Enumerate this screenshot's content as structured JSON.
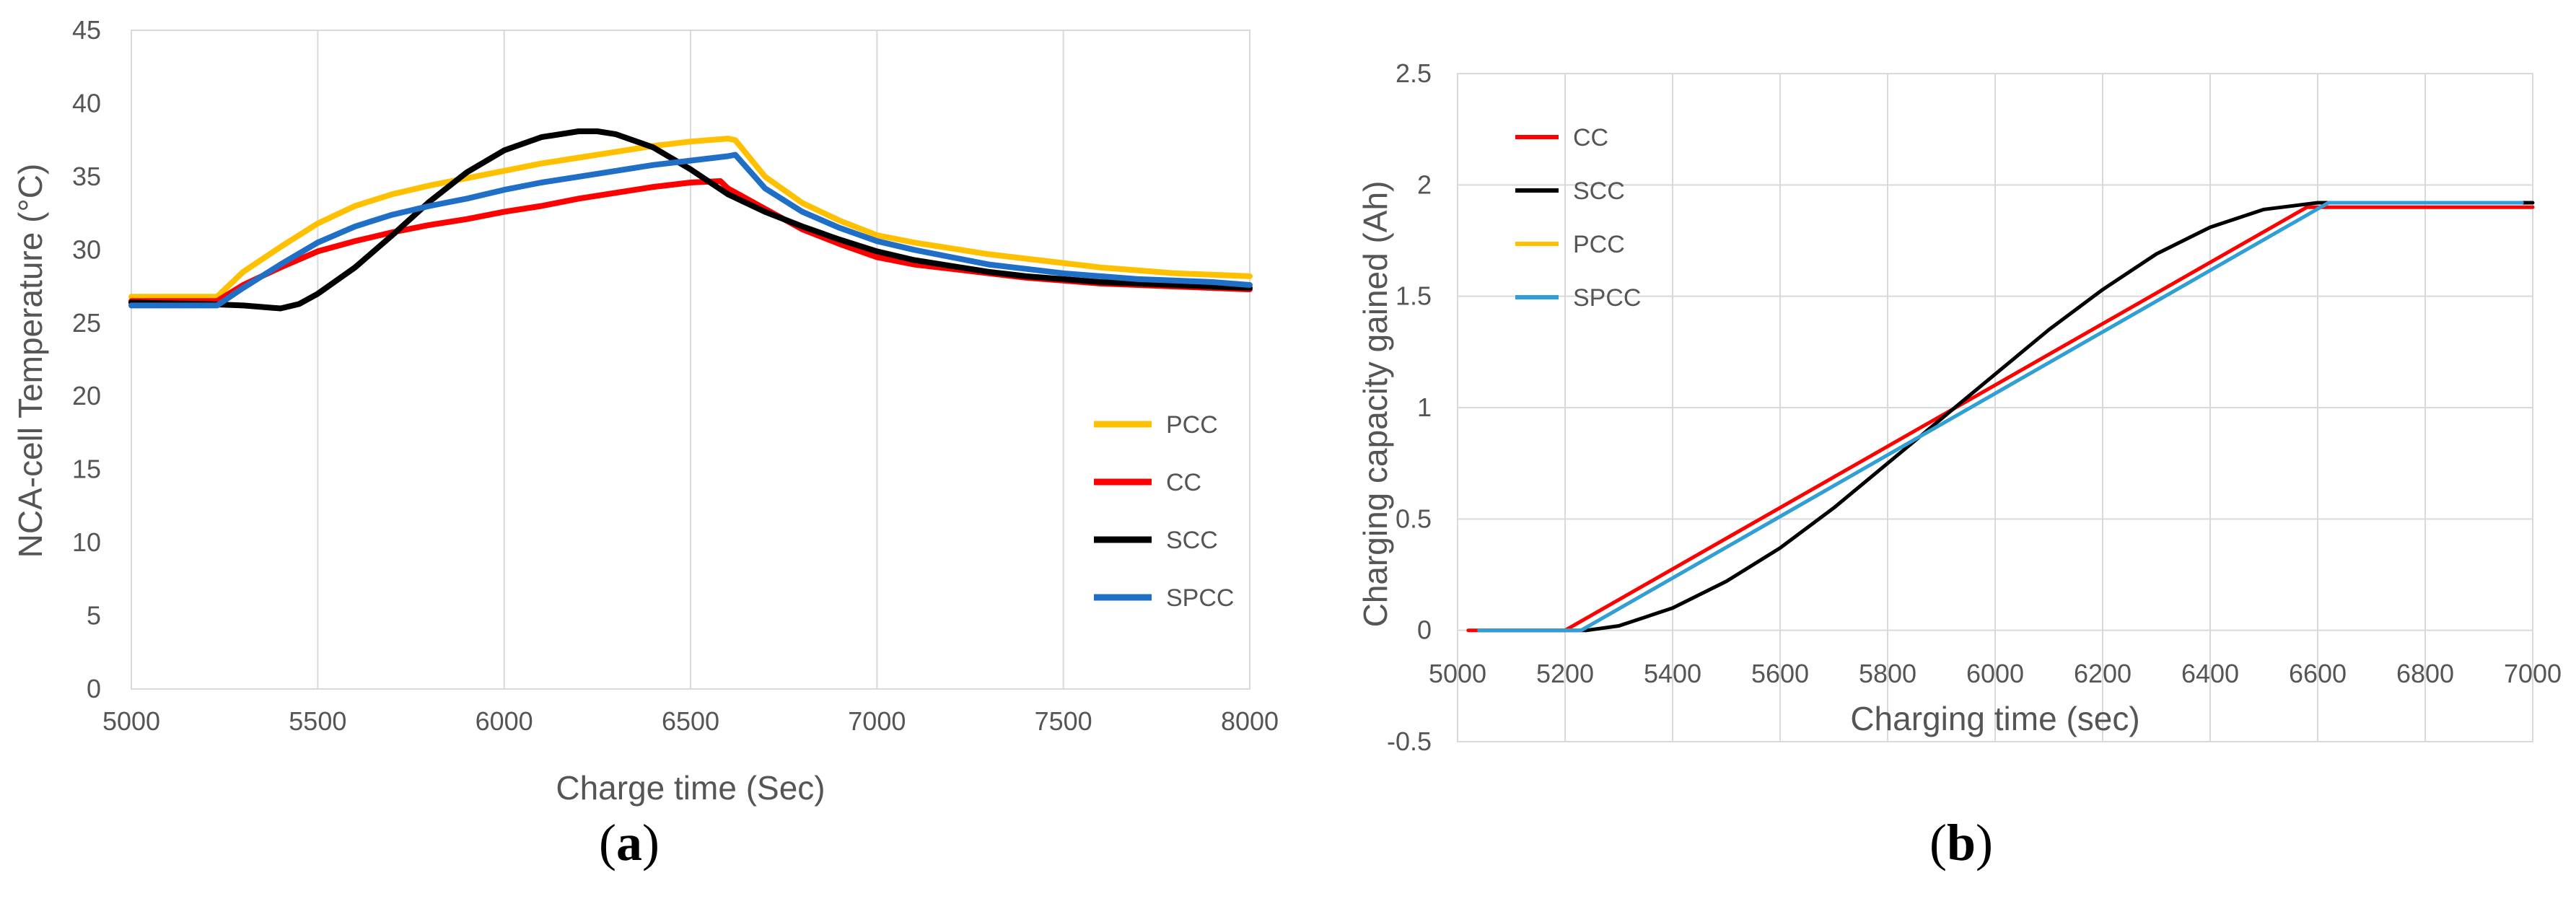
{
  "chart_data": [
    {
      "type": "line",
      "panel_label": "a",
      "xlabel": "Charge time (Sec)",
      "ylabel": "NCA-cell Temperature (°C)",
      "xlim": [
        5000,
        8000
      ],
      "ylim": [
        0,
        45
      ],
      "xticks": [
        5000,
        5500,
        6000,
        6500,
        7000,
        7500,
        8000
      ],
      "yticks": [
        0,
        5,
        10,
        15,
        20,
        25,
        30,
        35,
        40,
        45
      ],
      "grid": "vertical",
      "legend_position": "bottom-right",
      "series": [
        {
          "name": "PCC",
          "color": "#FFC000",
          "x": [
            5000,
            5230,
            5300,
            5400,
            5500,
            5600,
            5700,
            5800,
            5900,
            6000,
            6100,
            6200,
            6300,
            6400,
            6500,
            6600,
            6620,
            6700,
            6800,
            6900,
            7000,
            7100,
            7200,
            7300,
            7400,
            7500,
            7600,
            7700,
            7800,
            7900,
            8000
          ],
          "y": [
            26.8,
            26.8,
            28.5,
            30.2,
            31.8,
            33.0,
            33.8,
            34.4,
            34.9,
            35.4,
            35.9,
            36.3,
            36.7,
            37.1,
            37.4,
            37.6,
            37.5,
            35.0,
            33.2,
            32.0,
            31.0,
            30.5,
            30.1,
            29.7,
            29.4,
            29.1,
            28.8,
            28.6,
            28.4,
            28.3,
            28.2
          ]
        },
        {
          "name": "CC",
          "color": "#FF0000",
          "x": [
            5000,
            5230,
            5300,
            5400,
            5500,
            5600,
            5700,
            5800,
            5900,
            6000,
            6100,
            6200,
            6300,
            6400,
            6500,
            6580,
            6600,
            6700,
            6800,
            6900,
            7000,
            7100,
            7200,
            7300,
            7400,
            7500,
            7600,
            7700,
            7800,
            7900,
            8000
          ],
          "y": [
            26.5,
            26.5,
            27.6,
            28.8,
            29.9,
            30.6,
            31.2,
            31.7,
            32.1,
            32.6,
            33.0,
            33.5,
            33.9,
            34.3,
            34.6,
            34.7,
            34.2,
            32.8,
            31.4,
            30.4,
            29.5,
            29.0,
            28.7,
            28.4,
            28.1,
            27.9,
            27.7,
            27.6,
            27.5,
            27.4,
            27.3
          ]
        },
        {
          "name": "SCC",
          "color": "#000000",
          "x": [
            5000,
            5200,
            5300,
            5400,
            5450,
            5500,
            5600,
            5700,
            5800,
            5900,
            6000,
            6100,
            6200,
            6250,
            6300,
            6400,
            6500,
            6600,
            6700,
            6800,
            6900,
            7000,
            7100,
            7200,
            7300,
            7400,
            7500,
            7600,
            7700,
            7800,
            7900,
            8000
          ],
          "y": [
            26.4,
            26.3,
            26.2,
            26.0,
            26.3,
            27.0,
            28.8,
            31.0,
            33.3,
            35.3,
            36.8,
            37.7,
            38.1,
            38.1,
            37.9,
            37.0,
            35.5,
            33.8,
            32.6,
            31.6,
            30.7,
            29.9,
            29.3,
            28.9,
            28.5,
            28.2,
            28.0,
            27.8,
            27.7,
            27.6,
            27.5,
            27.4
          ]
        },
        {
          "name": "SPCC",
          "color": "#1F6FC6",
          "x": [
            5000,
            5230,
            5300,
            5400,
            5500,
            5600,
            5700,
            5800,
            5900,
            6000,
            6100,
            6200,
            6300,
            6400,
            6500,
            6600,
            6620,
            6700,
            6800,
            6900,
            7000,
            7100,
            7200,
            7300,
            7400,
            7500,
            7600,
            7700,
            7800,
            7900,
            8000
          ],
          "y": [
            26.2,
            26.2,
            27.4,
            29.0,
            30.5,
            31.6,
            32.4,
            33.0,
            33.5,
            34.1,
            34.6,
            35.0,
            35.4,
            35.8,
            36.1,
            36.4,
            36.5,
            34.2,
            32.6,
            31.5,
            30.6,
            30.0,
            29.5,
            29.0,
            28.7,
            28.4,
            28.2,
            28.0,
            27.9,
            27.8,
            27.6
          ]
        }
      ]
    },
    {
      "type": "line",
      "panel_label": "b",
      "xlabel": "Charging time (sec)",
      "ylabel": "Charging capacity gained (Ah)",
      "xlim": [
        5000,
        7000
      ],
      "ylim": [
        -0.5,
        2.5
      ],
      "xticks": [
        5000,
        5200,
        5400,
        5600,
        5800,
        6000,
        6200,
        6400,
        6600,
        6800,
        7000
      ],
      "yticks": [
        -0.5,
        0,
        0.5,
        1,
        1.5,
        2,
        2.5
      ],
      "ytick_labels": [
        "-0.5",
        "0",
        "0.5",
        "1",
        "1.5",
        "2",
        "2.5"
      ],
      "grid": "both",
      "legend_position": "top-left",
      "series": [
        {
          "name": "CC",
          "color": "#FF0000",
          "x": [
            5020,
            5200,
            6580,
            7000
          ],
          "y": [
            0,
            0,
            1.9,
            1.9
          ]
        },
        {
          "name": "SCC",
          "color": "#000000",
          "x": [
            5040,
            5240,
            5300,
            5400,
            5500,
            5600,
            5700,
            5800,
            5900,
            6000,
            6100,
            6200,
            6300,
            6400,
            6500,
            6600,
            7000
          ],
          "y": [
            0,
            0,
            0.02,
            0.1,
            0.22,
            0.37,
            0.55,
            0.75,
            0.95,
            1.15,
            1.35,
            1.53,
            1.69,
            1.81,
            1.89,
            1.92,
            1.92
          ]
        },
        {
          "name": "PCC",
          "color": "#FFC000",
          "x": [
            5040,
            5230,
            6620,
            6980
          ],
          "y": [
            0,
            0,
            1.92,
            1.92
          ]
        },
        {
          "name": "SPCC",
          "color": "#2E9FD8",
          "x": [
            5040,
            5230,
            6620,
            6980
          ],
          "y": [
            0,
            0,
            1.92,
            1.92
          ]
        }
      ]
    }
  ]
}
